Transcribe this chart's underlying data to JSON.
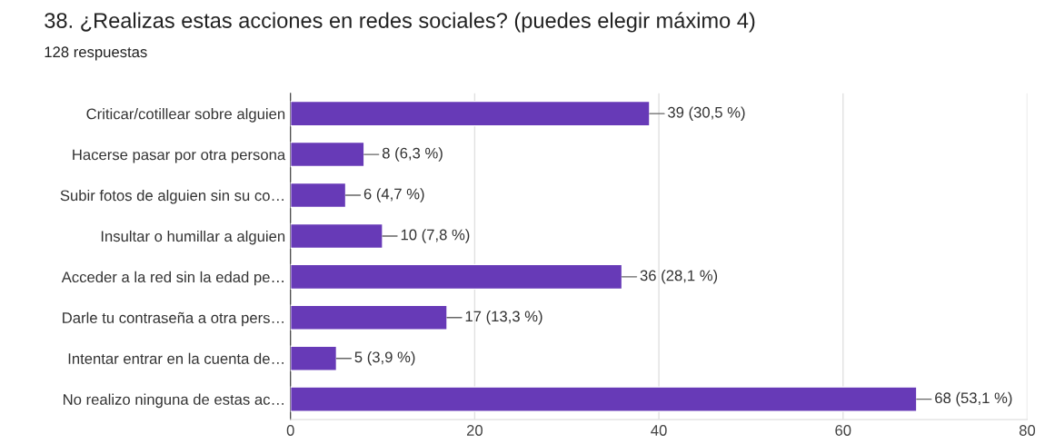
{
  "chart_data": {
    "type": "bar",
    "orientation": "horizontal",
    "title": "38. ¿Realizas estas acciones en redes sociales? (puedes elegir máximo 4)",
    "subtitle": "128 respuestas",
    "categories": [
      "Criticar/cotillear sobre alguien",
      "Hacerse pasar por otra persona",
      "Subir fotos de alguien sin su co…",
      "Insultar o humillar a alguien",
      "Acceder a la red sin la edad pe…",
      "Darle tu contraseña a otra pers…",
      "Intentar entrar en la cuenta de…",
      "No realizo ninguna de estas ac…"
    ],
    "values": [
      39,
      8,
      6,
      10,
      36,
      17,
      5,
      68
    ],
    "value_labels": [
      "39 (30,5 %)",
      "8 (6,3 %)",
      "6 (4,7 %)",
      "10 (7,8 %)",
      "36 (28,1 %)",
      "17 (13,3 %)",
      "5 (3,9 %)",
      "68 (53,1 %)"
    ],
    "color": "#673ab7",
    "xlim": [
      0,
      80
    ],
    "xticks": [
      0,
      20,
      40,
      60,
      80
    ],
    "grid": "x",
    "legend": false
  }
}
